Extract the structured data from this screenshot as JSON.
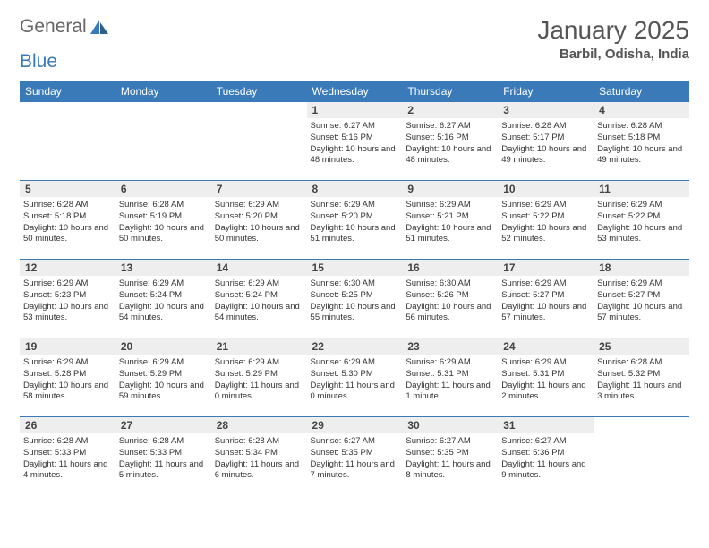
{
  "logo": {
    "text1": "General",
    "text2": "Blue"
  },
  "title": "January 2025",
  "location": "Barbil, Odisha, India",
  "header_bg": "#3a7ab8",
  "daynum_bg": "#eeeeee",
  "border_color": "#3a7ab8",
  "dayHeaders": [
    "Sunday",
    "Monday",
    "Tuesday",
    "Wednesday",
    "Thursday",
    "Friday",
    "Saturday"
  ],
  "weeks": [
    [
      {
        "n": "",
        "sr": "",
        "ss": "",
        "dl": ""
      },
      {
        "n": "",
        "sr": "",
        "ss": "",
        "dl": ""
      },
      {
        "n": "",
        "sr": "",
        "ss": "",
        "dl": ""
      },
      {
        "n": "1",
        "sr": "6:27 AM",
        "ss": "5:16 PM",
        "dl": "10 hours and 48 minutes."
      },
      {
        "n": "2",
        "sr": "6:27 AM",
        "ss": "5:16 PM",
        "dl": "10 hours and 48 minutes."
      },
      {
        "n": "3",
        "sr": "6:28 AM",
        "ss": "5:17 PM",
        "dl": "10 hours and 49 minutes."
      },
      {
        "n": "4",
        "sr": "6:28 AM",
        "ss": "5:18 PM",
        "dl": "10 hours and 49 minutes."
      }
    ],
    [
      {
        "n": "5",
        "sr": "6:28 AM",
        "ss": "5:18 PM",
        "dl": "10 hours and 50 minutes."
      },
      {
        "n": "6",
        "sr": "6:28 AM",
        "ss": "5:19 PM",
        "dl": "10 hours and 50 minutes."
      },
      {
        "n": "7",
        "sr": "6:29 AM",
        "ss": "5:20 PM",
        "dl": "10 hours and 50 minutes."
      },
      {
        "n": "8",
        "sr": "6:29 AM",
        "ss": "5:20 PM",
        "dl": "10 hours and 51 minutes."
      },
      {
        "n": "9",
        "sr": "6:29 AM",
        "ss": "5:21 PM",
        "dl": "10 hours and 51 minutes."
      },
      {
        "n": "10",
        "sr": "6:29 AM",
        "ss": "5:22 PM",
        "dl": "10 hours and 52 minutes."
      },
      {
        "n": "11",
        "sr": "6:29 AM",
        "ss": "5:22 PM",
        "dl": "10 hours and 53 minutes."
      }
    ],
    [
      {
        "n": "12",
        "sr": "6:29 AM",
        "ss": "5:23 PM",
        "dl": "10 hours and 53 minutes."
      },
      {
        "n": "13",
        "sr": "6:29 AM",
        "ss": "5:24 PM",
        "dl": "10 hours and 54 minutes."
      },
      {
        "n": "14",
        "sr": "6:29 AM",
        "ss": "5:24 PM",
        "dl": "10 hours and 54 minutes."
      },
      {
        "n": "15",
        "sr": "6:30 AM",
        "ss": "5:25 PM",
        "dl": "10 hours and 55 minutes."
      },
      {
        "n": "16",
        "sr": "6:30 AM",
        "ss": "5:26 PM",
        "dl": "10 hours and 56 minutes."
      },
      {
        "n": "17",
        "sr": "6:29 AM",
        "ss": "5:27 PM",
        "dl": "10 hours and 57 minutes."
      },
      {
        "n": "18",
        "sr": "6:29 AM",
        "ss": "5:27 PM",
        "dl": "10 hours and 57 minutes."
      }
    ],
    [
      {
        "n": "19",
        "sr": "6:29 AM",
        "ss": "5:28 PM",
        "dl": "10 hours and 58 minutes."
      },
      {
        "n": "20",
        "sr": "6:29 AM",
        "ss": "5:29 PM",
        "dl": "10 hours and 59 minutes."
      },
      {
        "n": "21",
        "sr": "6:29 AM",
        "ss": "5:29 PM",
        "dl": "11 hours and 0 minutes."
      },
      {
        "n": "22",
        "sr": "6:29 AM",
        "ss": "5:30 PM",
        "dl": "11 hours and 0 minutes."
      },
      {
        "n": "23",
        "sr": "6:29 AM",
        "ss": "5:31 PM",
        "dl": "11 hours and 1 minute."
      },
      {
        "n": "24",
        "sr": "6:29 AM",
        "ss": "5:31 PM",
        "dl": "11 hours and 2 minutes."
      },
      {
        "n": "25",
        "sr": "6:28 AM",
        "ss": "5:32 PM",
        "dl": "11 hours and 3 minutes."
      }
    ],
    [
      {
        "n": "26",
        "sr": "6:28 AM",
        "ss": "5:33 PM",
        "dl": "11 hours and 4 minutes."
      },
      {
        "n": "27",
        "sr": "6:28 AM",
        "ss": "5:33 PM",
        "dl": "11 hours and 5 minutes."
      },
      {
        "n": "28",
        "sr": "6:28 AM",
        "ss": "5:34 PM",
        "dl": "11 hours and 6 minutes."
      },
      {
        "n": "29",
        "sr": "6:27 AM",
        "ss": "5:35 PM",
        "dl": "11 hours and 7 minutes."
      },
      {
        "n": "30",
        "sr": "6:27 AM",
        "ss": "5:35 PM",
        "dl": "11 hours and 8 minutes."
      },
      {
        "n": "31",
        "sr": "6:27 AM",
        "ss": "5:36 PM",
        "dl": "11 hours and 9 minutes."
      },
      {
        "n": "",
        "sr": "",
        "ss": "",
        "dl": ""
      }
    ]
  ],
  "labels": {
    "sunrise": "Sunrise:",
    "sunset": "Sunset:",
    "daylight": "Daylight:"
  }
}
